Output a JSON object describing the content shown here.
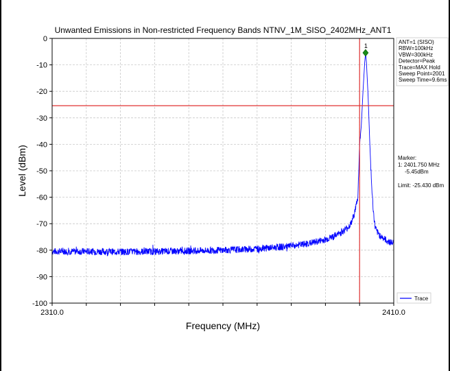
{
  "chart_data": {
    "type": "line",
    "title": "Unwanted Emissions in Non-restricted Frequency Bands NTNV_1M_SISO_2402MHz_ANT1",
    "xlabel": "Frequency (MHz)",
    "ylabel": "Level (dBm)",
    "xlim": [
      2310.0,
      2410.0
    ],
    "ylim": [
      -100,
      0
    ],
    "x_tick_labels": [
      "2310.0",
      "2410.0"
    ],
    "y_ticks": [
      0,
      -10,
      -20,
      -30,
      -40,
      -50,
      -60,
      -70,
      -80,
      -90,
      -100
    ],
    "grid": true,
    "series": [
      {
        "name": "Trace",
        "color": "#0000ff",
        "x": [
          2310,
          2320,
          2330,
          2340,
          2350,
          2360,
          2370,
          2380,
          2385,
          2390,
          2393,
          2395,
          2396.5,
          2397.5,
          2398.5,
          2399.5,
          2400.0,
          2400.5,
          2401.0,
          2401.5,
          2401.75,
          2402.0,
          2402.5,
          2403.0,
          2403.5,
          2404.0,
          2404.5,
          2405.0,
          2406.0,
          2407.0,
          2408.0,
          2409.0,
          2410.0
        ],
        "y": [
          -80.5,
          -80.5,
          -80.6,
          -80.5,
          -80.3,
          -80.0,
          -79.5,
          -78.5,
          -77.5,
          -76.0,
          -74.5,
          -73.0,
          -71.5,
          -70.0,
          -66.0,
          -60.0,
          -40.0,
          -33.0,
          -20.0,
          -9.0,
          -5.45,
          -9.0,
          -22.0,
          -40.0,
          -55.0,
          -65.0,
          -71.0,
          -73.0,
          -74.5,
          -75.5,
          -76.5,
          -77.0,
          -77.5
        ]
      }
    ],
    "limit_line": {
      "value": -25.43,
      "color": "#e03030"
    },
    "marker_line": {
      "value": 2400.0,
      "color": "#e03030"
    },
    "marker_point": {
      "label": "1",
      "x": 2401.75,
      "y": -5.45,
      "color": "#1a8c1a"
    },
    "legend": {
      "position": "bottom-right",
      "entries": [
        "Trace"
      ]
    }
  },
  "info_box": {
    "lines": [
      "ANT=1 (SISO)",
      "RBW=100kHz",
      "VBW=300kHz",
      "Detector=Peak",
      "Trace=MAX Hold",
      "Sweep Point=2001",
      "Sweep Time=9.6ms"
    ]
  },
  "marker_box": {
    "lines": [
      "Marker:",
      "1: 2401.750 MHz",
      "    -5.45dBm",
      "",
      "Limit: -25.430 dBm"
    ]
  }
}
